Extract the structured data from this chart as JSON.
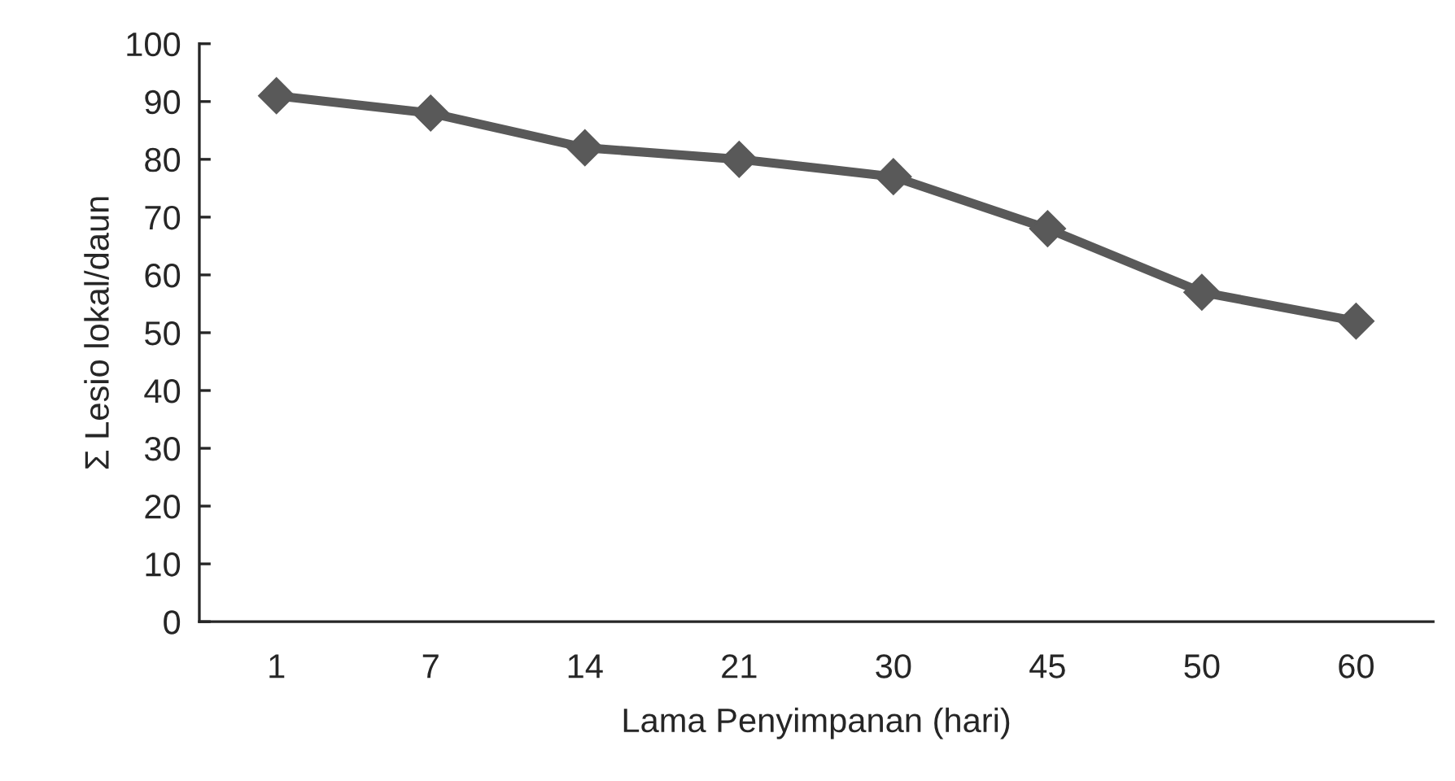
{
  "chart_data": {
    "type": "line",
    "xlabel": "Lama Penyimpanan (hari)",
    "ylabel": "Σ Lesio lokal/daun",
    "categories": [
      "1",
      "7",
      "14",
      "21",
      "30",
      "45",
      "50",
      "60"
    ],
    "series": [
      {
        "color": "#595959",
        "values": [
          91,
          88,
          82,
          80,
          77,
          68,
          57,
          52
        ]
      }
    ],
    "ylim": [
      0,
      100
    ],
    "yticks": [
      0,
      10,
      20,
      30,
      40,
      50,
      60,
      70,
      80,
      90,
      100
    ],
    "marker": "diamond",
    "line_style": "solid",
    "grid": false,
    "legend": false
  }
}
